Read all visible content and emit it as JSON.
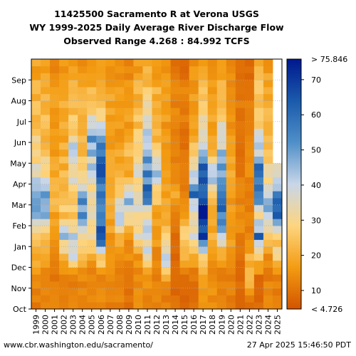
{
  "title": {
    "line1": "11425500 Sacramento R at Verona USGS",
    "line2": "WY 1999-2025 Daily Average River Discharge Flow",
    "line3": "Observed Range 4.268 : 84.992 TCFS"
  },
  "footer": {
    "url": "www.cbr.washington.edu/sacramento/",
    "timestamp": "27 Apr 2025 15:46:50 PDT"
  },
  "chart_data": {
    "type": "heatmap",
    "title": "11425500 Sacramento R at Verona USGS WY 1999-2025 Daily Average River Discharge Flow",
    "subtitle": "Observed Range 4.268 : 84.992 TCFS",
    "xlabel": "",
    "ylabel": "",
    "x": [
      "1999",
      "2000",
      "2001",
      "2002",
      "2003",
      "2004",
      "2005",
      "2006",
      "2007",
      "2008",
      "2009",
      "2010",
      "2011",
      "2012",
      "2013",
      "2014",
      "2015",
      "2016",
      "2017",
      "2018",
      "2019",
      "2020",
      "2021",
      "2022",
      "2023",
      "2024",
      "2025"
    ],
    "y_months": [
      "Oct",
      "Nov",
      "Dec",
      "Jan",
      "Feb",
      "Mar",
      "Apr",
      "May",
      "Jun",
      "Jul",
      "Aug",
      "Sep"
    ],
    "colorbar": {
      "min_label": "< 4.726",
      "max_label": "> 75.846",
      "ticks": [
        10,
        20,
        30,
        40,
        50,
        60,
        70
      ],
      "range": [
        4.726,
        75.846
      ],
      "colors": [
        "#d35400",
        "#f39c12",
        "#fdd57f",
        "#c8d6e8",
        "#4f8fc8",
        "#1a5aab",
        "#00188f"
      ]
    },
    "monthly_mean_tcfs": {
      "1999": [
        12,
        15,
        20,
        30,
        48,
        45,
        35,
        30,
        26,
        24,
        22,
        18
      ],
      "2000": [
        14,
        13,
        17,
        24,
        45,
        50,
        33,
        26,
        23,
        24,
        22,
        19
      ],
      "2001": [
        12,
        11,
        12,
        16,
        19,
        22,
        18,
        17,
        16,
        17,
        17,
        14
      ],
      "2002": [
        11,
        12,
        22,
        40,
        25,
        24,
        22,
        20,
        19,
        20,
        19,
        16
      ],
      "2003": [
        12,
        13,
        34,
        38,
        24,
        28,
        35,
        45,
        26,
        24,
        22,
        18
      ],
      "2004": [
        12,
        14,
        20,
        32,
        48,
        52,
        28,
        22,
        20,
        22,
        21,
        16
      ],
      "2005": [
        12,
        12,
        18,
        38,
        30,
        30,
        35,
        46,
        52,
        26,
        22,
        18
      ],
      "2006": [
        13,
        14,
        28,
        75,
        50,
        56,
        72,
        60,
        42,
        27,
        24,
        19
      ],
      "2007": [
        12,
        13,
        14,
        17,
        20,
        20,
        18,
        17,
        16,
        18,
        18,
        15
      ],
      "2008": [
        12,
        11,
        14,
        24,
        45,
        30,
        22,
        18,
        16,
        18,
        18,
        15
      ],
      "2009": [
        10,
        11,
        14,
        16,
        36,
        46,
        20,
        22,
        16,
        17,
        16,
        13
      ],
      "2010": [
        14,
        13,
        15,
        32,
        36,
        30,
        34,
        33,
        26,
        22,
        21,
        17
      ],
      "2011": [
        13,
        14,
        35,
        40,
        34,
        56,
        52,
        46,
        44,
        30,
        26,
        20
      ],
      "2012": [
        12,
        12,
        13,
        17,
        18,
        28,
        42,
        30,
        20,
        22,
        21,
        17
      ],
      "2013": [
        12,
        18,
        42,
        28,
        18,
        18,
        17,
        16,
        16,
        17,
        18,
        14
      ],
      "2014": [
        9,
        8,
        8,
        9,
        12,
        20,
        14,
        12,
        12,
        13,
        13,
        10
      ],
      "2015": [
        8,
        8,
        24,
        28,
        16,
        12,
        11,
        10,
        10,
        12,
        12,
        9
      ],
      "2016": [
        10,
        10,
        18,
        34,
        30,
        55,
        40,
        25,
        20,
        18,
        17,
        15
      ],
      "2017": [
        14,
        18,
        30,
        70,
        80,
        66,
        60,
        50,
        38,
        28,
        24,
        18
      ],
      "2018": [
        14,
        14,
        15,
        20,
        17,
        28,
        46,
        22,
        18,
        20,
        19,
        16
      ],
      "2019": [
        12,
        11,
        18,
        38,
        55,
        60,
        48,
        44,
        38,
        26,
        22,
        18
      ],
      "2020": [
        12,
        12,
        16,
        18,
        16,
        17,
        18,
        17,
        15,
        16,
        16,
        14
      ],
      "2021": [
        8,
        9,
        10,
        13,
        14,
        12,
        11,
        10,
        9,
        11,
        11,
        9
      ],
      "2022": [
        10,
        24,
        20,
        14,
        12,
        12,
        14,
        13,
        11,
        11,
        11,
        8
      ],
      "2023": [
        8,
        9,
        26,
        55,
        34,
        52,
        60,
        42,
        32,
        24,
        24,
        20
      ],
      "2024": [
        14,
        12,
        14,
        24,
        48,
        38,
        30,
        24,
        22,
        22,
        20,
        17
      ],
      "2025": [
        12,
        12,
        28,
        26,
        62,
        52,
        40,
        null,
        null,
        null,
        null,
        null
      ]
    }
  }
}
